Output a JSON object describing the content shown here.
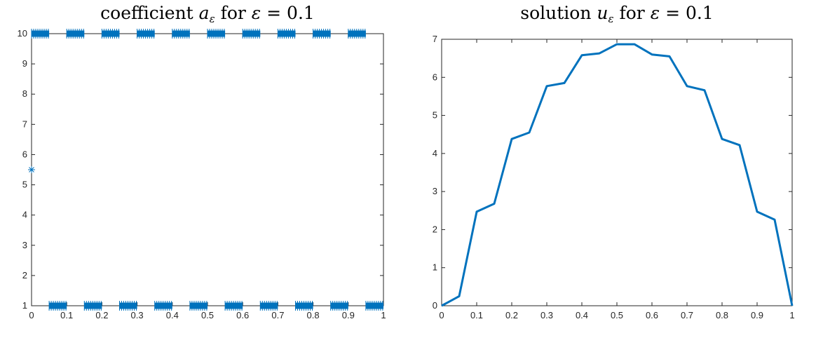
{
  "chart_data": [
    {
      "type": "scatter",
      "title_parts": {
        "prefix": "coefficient ",
        "symbol": "a",
        "subscript": "ε",
        "mid": " for ",
        "param": "ε",
        "eq": " = 0.1"
      },
      "xlabel": "",
      "ylabel": "",
      "xlim": [
        0,
        1
      ],
      "ylim": [
        1,
        10
      ],
      "xticks": [
        "0",
        "0.1",
        "0.2",
        "0.3",
        "0.4",
        "0.5",
        "0.6",
        "0.7",
        "0.8",
        "0.9",
        "1"
      ],
      "yticks": [
        "1",
        "2",
        "3",
        "4",
        "5",
        "6",
        "7",
        "8",
        "9",
        "10"
      ],
      "marker": "asterisk",
      "color": "#0072BD",
      "series": [
        {
          "segments_high": [
            [
              0.0,
              0.05
            ],
            [
              0.1,
              0.15
            ],
            [
              0.2,
              0.25
            ],
            [
              0.3,
              0.35
            ],
            [
              0.4,
              0.45
            ],
            [
              0.5,
              0.55
            ],
            [
              0.6,
              0.65
            ],
            [
              0.7,
              0.75
            ],
            [
              0.8,
              0.85
            ],
            [
              0.9,
              0.95
            ]
          ],
          "segments_low": [
            [
              0.05,
              0.1
            ],
            [
              0.15,
              0.2
            ],
            [
              0.25,
              0.3
            ],
            [
              0.35,
              0.4
            ],
            [
              0.45,
              0.5
            ],
            [
              0.55,
              0.6
            ],
            [
              0.65,
              0.7
            ],
            [
              0.75,
              0.8
            ],
            [
              0.85,
              0.9
            ],
            [
              0.95,
              1.0
            ]
          ],
          "high_value": 10,
          "low_value": 1,
          "isolated_points": [
            {
              "x": 0.0,
              "y": 5.5
            }
          ]
        }
      ]
    },
    {
      "type": "line",
      "title_parts": {
        "prefix": "solution ",
        "symbol": "u",
        "subscript": "ε",
        "mid": " for ",
        "param": "ε",
        "eq": " = 0.1"
      },
      "xlabel": "",
      "ylabel": "",
      "xlim": [
        0,
        1
      ],
      "ylim": [
        0,
        7
      ],
      "xticks": [
        "0",
        "0.1",
        "0.2",
        "0.3",
        "0.4",
        "0.5",
        "0.6",
        "0.7",
        "0.8",
        "0.9",
        "1"
      ],
      "yticks": [
        "0",
        "1",
        "2",
        "3",
        "4",
        "5",
        "6",
        "7"
      ],
      "color": "#0072BD",
      "series": [
        {
          "x": [
            0,
            0.05,
            0.1,
            0.15,
            0.2,
            0.25,
            0.3,
            0.35,
            0.4,
            0.45,
            0.5,
            0.55,
            0.6,
            0.65,
            0.7,
            0.75,
            0.8,
            0.85,
            0.9,
            0.95,
            1.0
          ],
          "y": [
            0,
            0.25,
            2.47,
            2.68,
            4.38,
            4.55,
            5.77,
            5.85,
            6.58,
            6.63,
            6.87,
            6.87,
            6.6,
            6.55,
            5.77,
            5.66,
            4.38,
            4.22,
            2.47,
            2.26,
            0
          ]
        }
      ]
    }
  ]
}
